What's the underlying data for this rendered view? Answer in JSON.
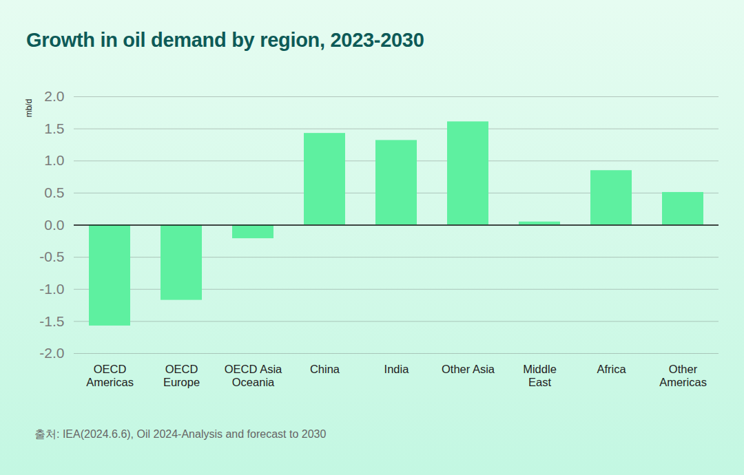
{
  "chart_data": {
    "type": "bar",
    "title": "Growth in oil demand by region, 2023-2030",
    "y_label": "mb/d",
    "caption": "출처: IEA(2024.6.6), Oil 2024-Analysis and forecast to 2030",
    "categories": [
      "OECD Americas",
      "OECD Europe",
      "OECD Asia Oceania",
      "China",
      "India",
      "Other Asia",
      "Middle East",
      "Africa",
      "Other Americas"
    ],
    "values": [
      -1.57,
      -1.17,
      -0.21,
      1.43,
      1.32,
      1.61,
      0.05,
      0.85,
      0.51
    ],
    "color": "#5ef0a0",
    "ylim": [
      -2,
      2
    ],
    "yticks": [
      {
        "value": 2,
        "label": "2.0"
      },
      1.5,
      {
        "value": 1,
        "label": "1.0"
      },
      0.5,
      {
        "value": 0,
        "label": "0.0"
      },
      -0.5,
      {
        "value": -1,
        "label": "-1.0"
      },
      -1.5,
      {
        "value": -2,
        "label": "-2.0"
      }
    ],
    "grid": true
  }
}
